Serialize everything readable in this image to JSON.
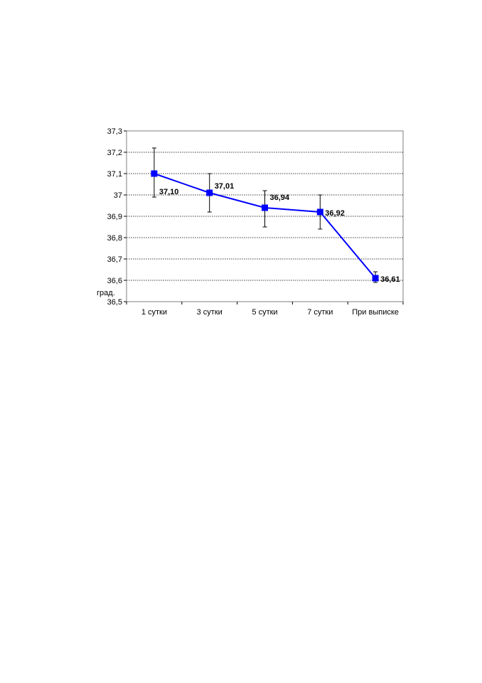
{
  "chart_data": {
    "type": "line",
    "categories": [
      "1 сутки",
      "3 сутки",
      "5 сутки",
      "7 сутки",
      "При выписке"
    ],
    "series": [
      {
        "values": [
          37.1,
          37.01,
          36.94,
          36.92,
          36.61
        ],
        "value_labels": [
          "37,10",
          "37,01",
          "36,94",
          "36,92",
          "36,61"
        ],
        "error_low": [
          36.99,
          36.92,
          36.85,
          36.84,
          36.59
        ],
        "error_high": [
          37.22,
          37.1,
          37.02,
          37.0,
          36.64
        ],
        "color": "#0000ff",
        "marker": "square"
      }
    ],
    "ylim": [
      36.5,
      37.3
    ],
    "yticks": [
      36.5,
      36.6,
      36.7,
      36.8,
      36.9,
      37.0,
      37.1,
      37.2,
      37.3
    ],
    "ytick_labels": [
      "36,5",
      "36,6",
      "36,7",
      "36,8",
      "36,9",
      "37",
      "37,1",
      "37,2",
      "37,3"
    ],
    "ylabel": "град.",
    "grid": true,
    "legend": "none"
  }
}
